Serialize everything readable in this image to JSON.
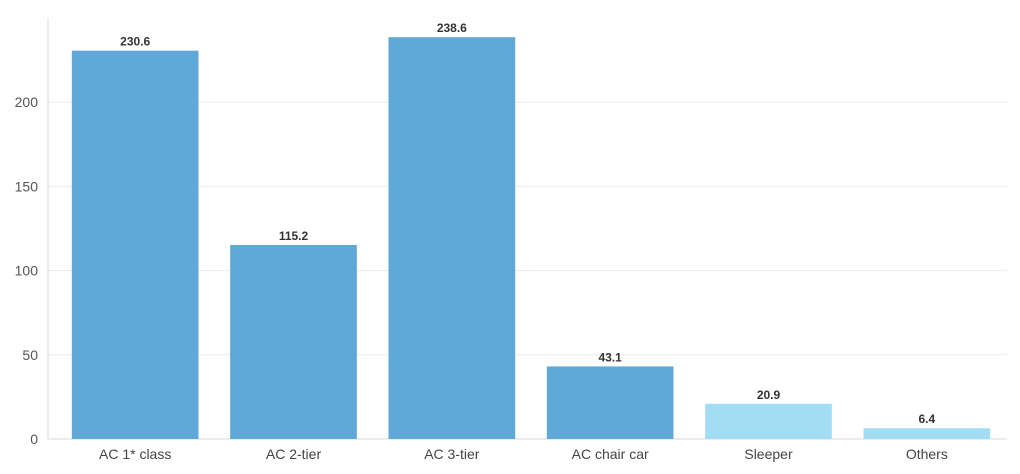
{
  "chart_data": {
    "type": "bar",
    "title": "",
    "xlabel": "",
    "ylabel": "",
    "categories": [
      "AC 1* class",
      "AC 2-tier",
      "AC 3-tier",
      "AC chair car",
      "Sleeper",
      "Others"
    ],
    "values": [
      230.6,
      115.2,
      238.6,
      43.1,
      20.9,
      6.4
    ],
    "data_labels": [
      "230.6",
      "115.2",
      "238.6",
      "43.1",
      "20.9",
      "6.4"
    ],
    "ylim": [
      0,
      250
    ],
    "yticks": [
      0,
      50,
      100,
      150,
      200
    ],
    "ytick_labels": [
      "0",
      "50",
      "100",
      "150",
      "200"
    ],
    "grid": true,
    "legend": "none",
    "bar_colors": [
      "#5fa8d8",
      "#5fa8d8",
      "#5fa8d8",
      "#5fa8d8",
      "#a3ddf4",
      "#a3ddf4"
    ]
  }
}
